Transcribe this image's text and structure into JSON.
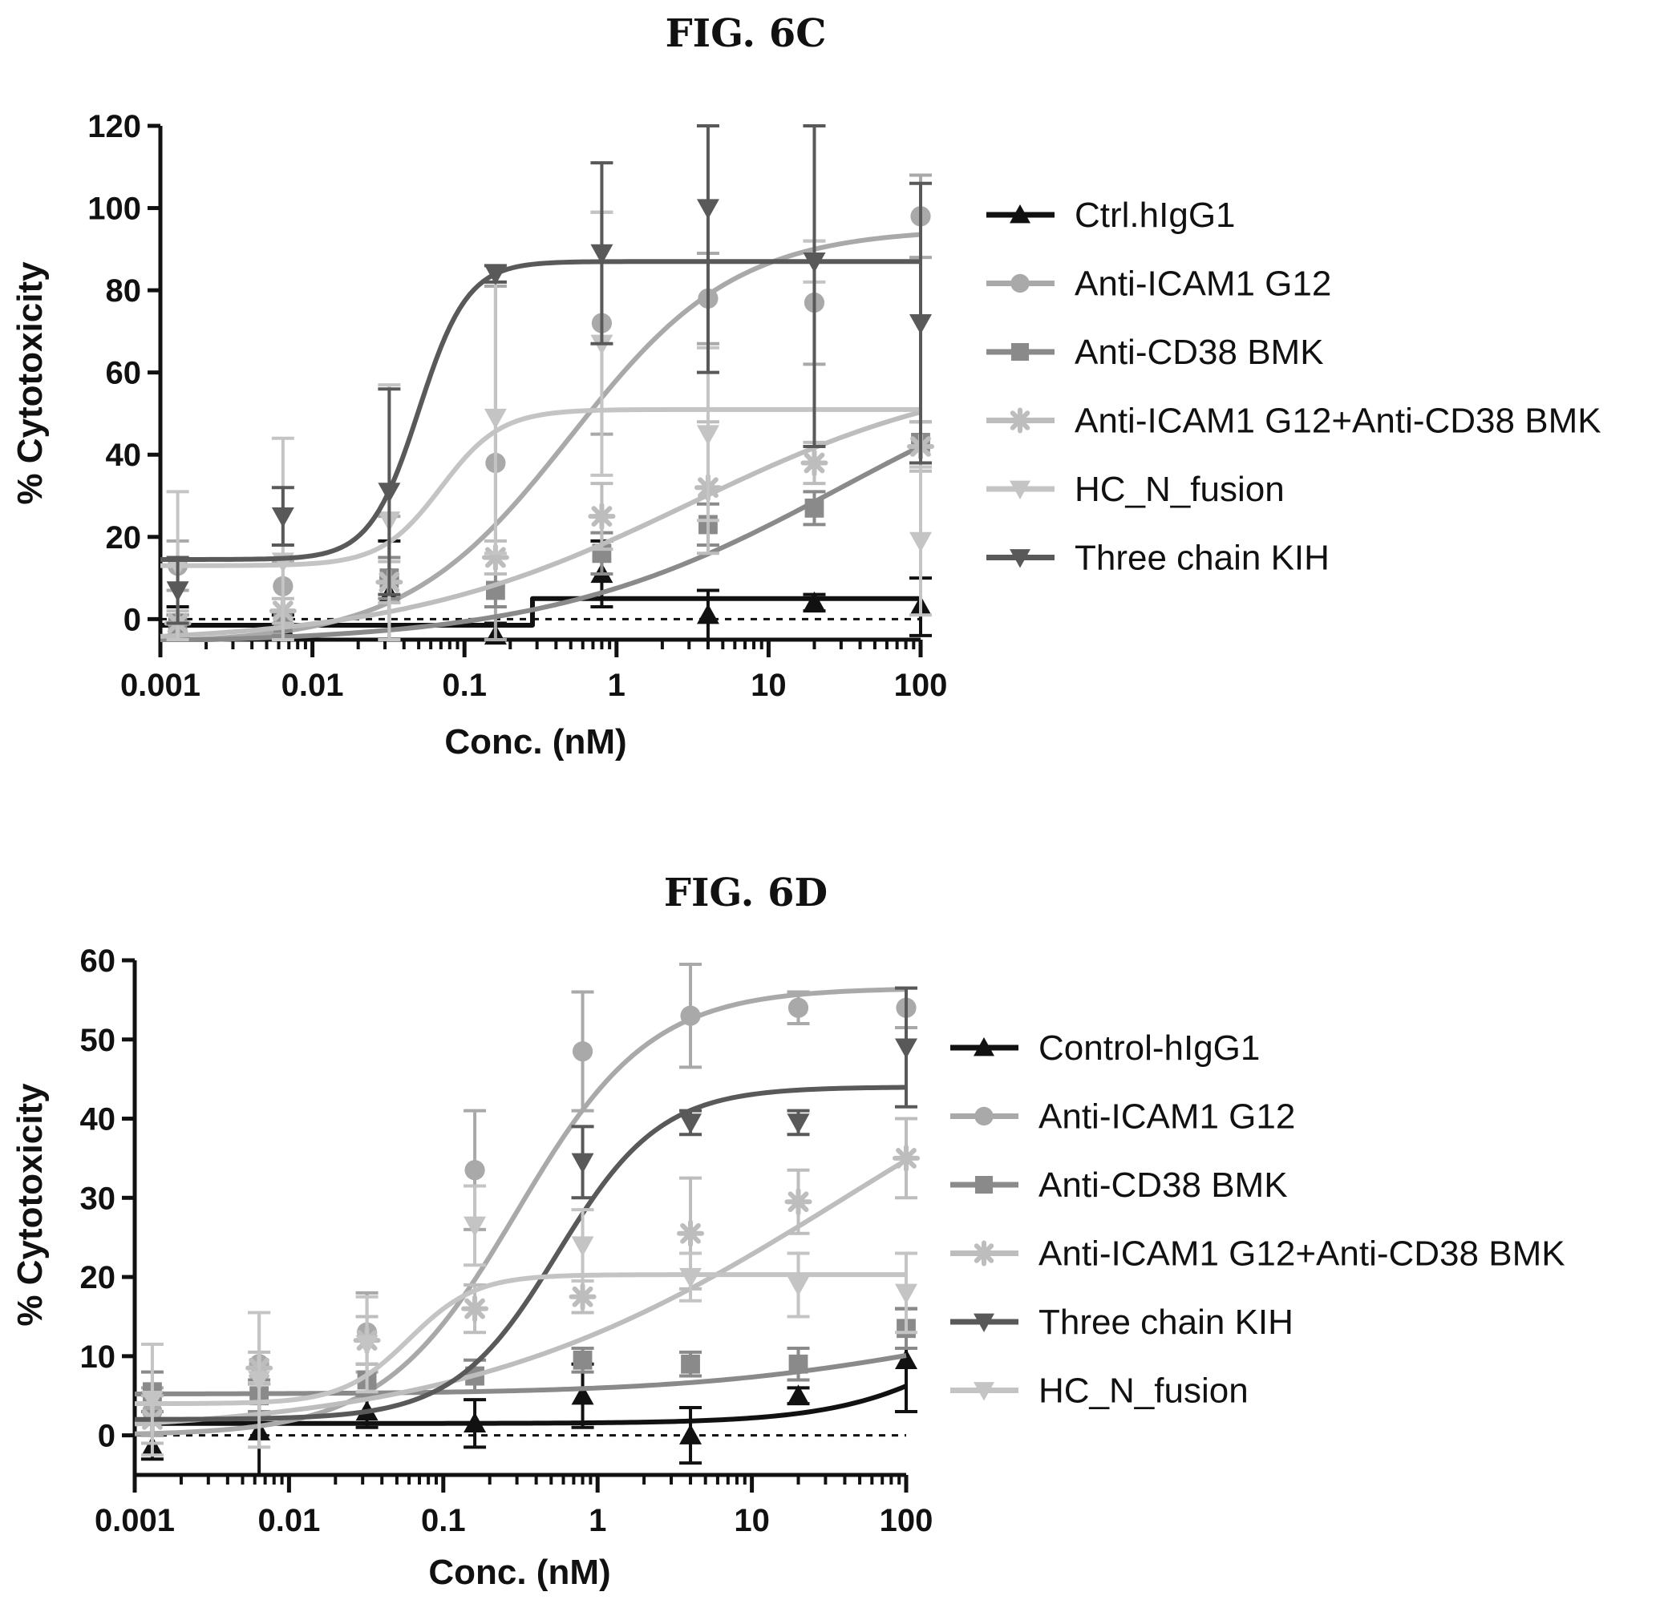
{
  "chart_data": [
    {
      "type": "scatter",
      "title": "FIG. 6C",
      "xlabel": "Conc. (nM)",
      "ylabel": "% Cytotoxicity",
      "xscale": "log",
      "xlim": [
        0.001,
        100
      ],
      "ylim": [
        -5,
        120
      ],
      "yticks": [
        0,
        20,
        40,
        60,
        80,
        100,
        120
      ],
      "xticks": [
        0.001,
        0.01,
        0.1,
        1,
        10,
        100
      ],
      "xtick_labels": [
        "0.001",
        "0.01",
        "0.1",
        "1",
        "10",
        "100"
      ],
      "ytick_labels": [
        "0",
        "20",
        "40",
        "60",
        "80",
        "100",
        "120"
      ],
      "legend_position": "right",
      "series": [
        {
          "name": "Ctrl.hIgG1",
          "color": "#111111",
          "marker": "triangle-up",
          "x": [
            0.0013,
            0.0064,
            0.032,
            0.16,
            0.8,
            4,
            20,
            100
          ],
          "y": [
            -2,
            -2,
            6,
            -4,
            11,
            1,
            4,
            3
          ],
          "err": [
            5,
            3,
            13,
            3,
            8,
            6,
            2,
            7
          ],
          "fit": {
            "kind": "step",
            "x": [
              0.001,
              0.28,
              0.28,
              100
            ],
            "y": [
              -1.5,
              -1.5,
              5,
              5
            ]
          }
        },
        {
          "name": "Anti-ICAM1 G12",
          "color": "#a9a9a9",
          "marker": "circle",
          "x": [
            0.0013,
            0.0064,
            0.032,
            0.16,
            0.8,
            4,
            20,
            100
          ],
          "y": [
            13,
            8,
            10,
            38,
            72,
            78,
            77,
            98
          ],
          "err": [
            6,
            6,
            15,
            43,
            27,
            11,
            15,
            10
          ],
          "fit": {
            "kind": "sigmoid",
            "bottom": -6,
            "top": 95,
            "ec50": 0.5,
            "hill": 0.8
          }
        },
        {
          "name": "Anti-CD38 BMK",
          "color": "#8a8a8a",
          "marker": "square",
          "x": [
            0.0013,
            0.0064,
            0.032,
            0.16,
            0.8,
            4,
            20,
            100
          ],
          "y": [
            -2,
            -1,
            10,
            7,
            16,
            23,
            27,
            43
          ],
          "err": [
            3,
            3,
            5,
            4,
            5,
            5,
            4,
            5
          ],
          "fit": {
            "kind": "sigmoid",
            "bottom": -6,
            "top": 70,
            "ec50": 30,
            "hill": 0.45
          }
        },
        {
          "name": "Anti-ICAM1 G12+Anti-CD38 BMK",
          "color": "#bdbdbd",
          "marker": "star",
          "x": [
            0.0013,
            0.0064,
            0.032,
            0.16,
            0.8,
            4,
            20,
            100
          ],
          "y": [
            -1,
            2,
            9,
            15,
            25,
            32,
            38,
            42
          ],
          "err": [
            3,
            3,
            5,
            4,
            8,
            16,
            5,
            6
          ],
          "fit": {
            "kind": "sigmoid",
            "bottom": -6,
            "top": 62,
            "ec50": 3,
            "hill": 0.45
          }
        },
        {
          "name": "HC_N_fusion",
          "color": "#c4c4c4",
          "marker": "triangle-down",
          "x": [
            0.0013,
            0.0064,
            0.032,
            0.16,
            0.8,
            4,
            20,
            100
          ],
          "y": [
            13,
            14,
            24,
            49,
            67,
            45,
            87,
            19
          ],
          "err": [
            18,
            30,
            33,
            33,
            32,
            21,
            5,
            18
          ],
          "fit": {
            "kind": "sigmoid",
            "bottom": 13,
            "top": 51,
            "ec50": 0.07,
            "hill": 2.2
          }
        },
        {
          "name": "Three chain KIH",
          "color": "#595959",
          "marker": "triangle-down",
          "x": [
            0.0013,
            0.0064,
            0.032,
            0.16,
            0.8,
            4,
            20,
            100
          ],
          "y": [
            7,
            25,
            31,
            84,
            89,
            100,
            87,
            72
          ],
          "err": [
            8,
            7,
            25,
            2,
            22,
            40,
            45,
            34
          ],
          "fit": {
            "kind": "sigmoid",
            "bottom": 14.5,
            "top": 87,
            "ec50": 0.05,
            "hill": 2.7
          }
        }
      ]
    },
    {
      "type": "scatter",
      "title": "FIG. 6D",
      "xlabel": "Conc. (nM)",
      "ylabel": "% Cytotoxicity",
      "xscale": "log",
      "xlim": [
        0.001,
        100
      ],
      "ylim": [
        -5,
        60
      ],
      "yticks": [
        0,
        10,
        20,
        30,
        40,
        50,
        60
      ],
      "xticks": [
        0.001,
        0.01,
        0.1,
        1,
        10,
        100
      ],
      "xtick_labels": [
        "0.001",
        "0.01",
        "0.1",
        "1",
        "10",
        "100"
      ],
      "ytick_labels": [
        "0",
        "10",
        "20",
        "30",
        "40",
        "50",
        "60"
      ],
      "legend_position": "right",
      "series": [
        {
          "name": "Control-hIgG1",
          "color": "#111111",
          "marker": "triangle-up",
          "x": [
            0.0013,
            0.0064,
            0.032,
            0.16,
            0.8,
            4,
            20,
            100
          ],
          "y": [
            -1.5,
            0.5,
            3,
            1.5,
            5,
            0,
            5,
            9.5
          ],
          "err": [
            1.5,
            6,
            2,
            3,
            4,
            3.5,
            1,
            6.5
          ],
          "fit": {
            "kind": "sigmoid",
            "bottom": 1.5,
            "top": 30,
            "ec50": 600,
            "hill": 0.9
          }
        },
        {
          "name": "Anti-ICAM1 G12",
          "color": "#a9a9a9",
          "marker": "circle",
          "x": [
            0.0013,
            0.0064,
            0.032,
            0.16,
            0.8,
            4,
            20,
            100
          ],
          "y": [
            3,
            9,
            13,
            33.5,
            48.5,
            53,
            54,
            54
          ],
          "err": [
            3,
            6.5,
            5,
            7.5,
            7.5,
            6.5,
            2,
            2.5
          ],
          "fit": {
            "kind": "sigmoid",
            "bottom": 0,
            "top": 56.5,
            "ec50": 0.3,
            "hill": 1.0
          }
        },
        {
          "name": "Anti-CD38 BMK",
          "color": "#8a8a8a",
          "marker": "square",
          "x": [
            0.0013,
            0.0064,
            0.032,
            0.16,
            0.8,
            4,
            20,
            100
          ],
          "y": [
            5.5,
            5,
            7,
            7.5,
            9.5,
            9,
            9,
            13.5
          ],
          "err": [
            2.5,
            2,
            2,
            2,
            1.5,
            1.5,
            2,
            2.5
          ],
          "fit": {
            "kind": "sigmoid",
            "bottom": 5.2,
            "top": 17,
            "ec50": 200,
            "hill": 0.5
          }
        },
        {
          "name": "Anti-ICAM1 G12+Anti-CD38 BMK",
          "color": "#bdbdbd",
          "marker": "star",
          "x": [
            0.0013,
            0.0064,
            0.032,
            0.16,
            0.8,
            4,
            20,
            100
          ],
          "y": [
            2,
            8.5,
            12,
            16,
            17.5,
            25.5,
            29.5,
            35
          ],
          "err": [
            3,
            2,
            3,
            3,
            2,
            7,
            4,
            5
          ],
          "fit": {
            "kind": "sigmoid",
            "bottom": 0,
            "top": 60,
            "ec50": 40,
            "hill": 0.35
          }
        },
        {
          "name": "Three chain KIH",
          "color": "#595959",
          "marker": "triangle-down",
          "x": [
            0.8,
            4,
            20,
            100
          ],
          "y": [
            34.5,
            39.5,
            39.5,
            49
          ],
          "err": [
            4.5,
            1.5,
            1.5,
            7.5
          ],
          "fit": {
            "kind": "sigmoid",
            "bottom": 2,
            "top": 44,
            "ec50": 0.55,
            "hill": 1.3
          }
        },
        {
          "name": "HC_N_fusion",
          "color": "#c4c4c4",
          "marker": "triangle-down",
          "x": [
            0.0013,
            0.0064,
            0.032,
            0.16,
            0.8,
            4,
            20,
            100
          ],
          "y": [
            4.5,
            7,
            11.5,
            26.5,
            24,
            20,
            19,
            18
          ],
          "err": [
            7,
            8.5,
            6,
            5,
            4.5,
            3,
            4,
            5
          ],
          "fit": {
            "kind": "sigmoid",
            "bottom": 4,
            "top": 20.3,
            "ec50": 0.06,
            "hill": 2.0
          }
        }
      ]
    }
  ]
}
